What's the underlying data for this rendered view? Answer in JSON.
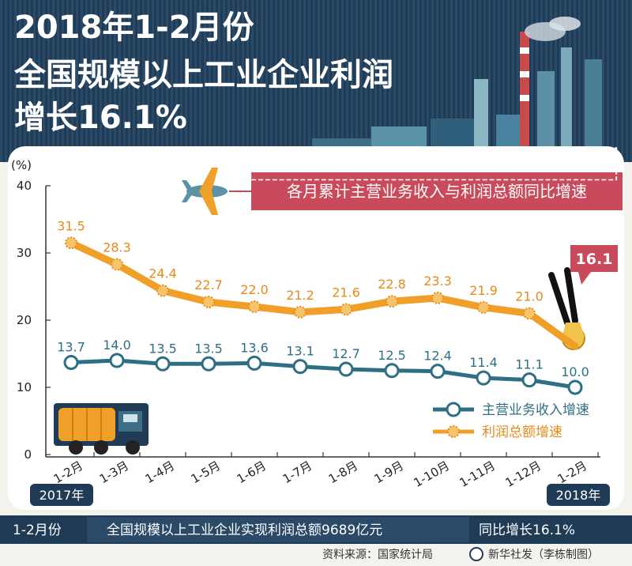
{
  "header": {
    "title_lines": [
      "2018年1-2月份",
      "全国规模以上工业企业利润",
      "增长16.1%"
    ]
  },
  "banner": {
    "text": "各月累计主营业务收入与利润总额同比增速"
  },
  "chart_data": {
    "type": "line",
    "categories": [
      "1-2月",
      "1-3月",
      "1-4月",
      "1-5月",
      "1-6月",
      "1-7月",
      "1-8月",
      "1-9月",
      "1-10月",
      "1-11月",
      "1-12月",
      "1-2月"
    ],
    "series": [
      {
        "name": "主营业务收入增速",
        "color": "#2e6f86",
        "values": [
          13.7,
          14.0,
          13.5,
          13.5,
          13.6,
          13.1,
          12.7,
          12.5,
          12.4,
          11.4,
          11.1,
          10.0
        ]
      },
      {
        "name": "利润总额增速",
        "color": "#f0a028",
        "values": [
          31.5,
          28.3,
          24.4,
          22.7,
          22.0,
          21.2,
          21.6,
          22.8,
          23.3,
          21.9,
          21.0,
          16.1
        ]
      }
    ],
    "value_labels_b": [
      "13.7",
      "14.0",
      "13.5",
      "13.5",
      "13.6",
      "13.1",
      "12.7",
      "12.5",
      "12.4",
      "11.4",
      "11.1",
      "10.0"
    ],
    "value_labels_o": [
      "31.5",
      "28.3",
      "24.4",
      "22.7",
      "22.0",
      "21.2",
      "21.6",
      "22.8",
      "23.3",
      "21.9",
      "21.0"
    ],
    "highlight_label": "16.1",
    "ylabel": "(%)",
    "ylim": [
      0,
      40
    ],
    "yticks": [
      "0",
      "10",
      "20",
      "30",
      "40"
    ],
    "year_labels": [
      "2017年",
      "2018年"
    ],
    "grid": false,
    "legend_position": "bottom-right"
  },
  "footer": {
    "left": "1-2月份",
    "middle": "全国规模以上工业企业实现利润总额9689亿元",
    "right": "同比增长16.1%"
  },
  "source": {
    "text": "资料来源：国家统计局",
    "credit": "新华社发（李栋制图）"
  }
}
